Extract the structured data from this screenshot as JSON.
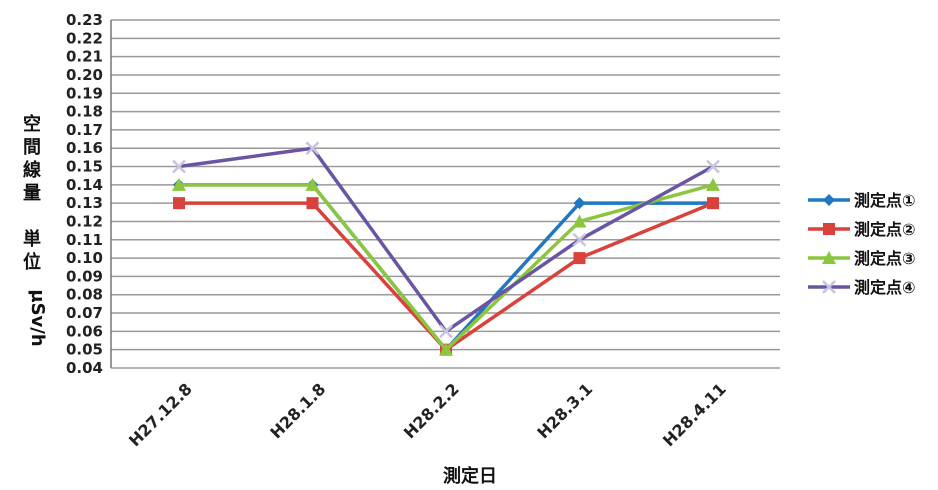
{
  "chart_data": {
    "type": "line",
    "categories": [
      "H27.12.8",
      "H28.1.8",
      "H28.2.2",
      "H28.3.1",
      "H28.4.11"
    ],
    "xlabel": "測定日",
    "ylabel": "空間線量　単位 µSv/h",
    "ylabel_parts": [
      "空",
      "間",
      "線",
      "量",
      "単",
      "位",
      "µSv/h"
    ],
    "ylim": [
      0.04,
      0.23
    ],
    "yticks": [
      "0.23",
      "0.22",
      "0.21",
      "0.20",
      "0.19",
      "0.18",
      "0.17",
      "0.16",
      "0.15",
      "0.14",
      "0.13",
      "0.12",
      "0.11",
      "0.10",
      "0.09",
      "0.08",
      "0.07",
      "0.06",
      "0.05",
      "0.04"
    ],
    "grid": true,
    "legend_position": "right",
    "series": [
      {
        "name": "測定点①",
        "color": "#1f78c1",
        "marker": "diamond",
        "values": [
          0.14,
          0.14,
          0.05,
          0.13,
          0.13
        ]
      },
      {
        "name": "測定点②",
        "color": "#d9413b",
        "marker": "square",
        "values": [
          0.13,
          0.13,
          0.05,
          0.1,
          0.13
        ]
      },
      {
        "name": "測定点③",
        "color": "#8cc63f",
        "marker": "triangle",
        "values": [
          0.14,
          0.14,
          0.05,
          0.12,
          0.14
        ]
      },
      {
        "name": "測定点④",
        "color": "#6a55a5",
        "marker": "x",
        "values": [
          0.15,
          0.16,
          0.06,
          0.11,
          0.15
        ]
      }
    ]
  }
}
